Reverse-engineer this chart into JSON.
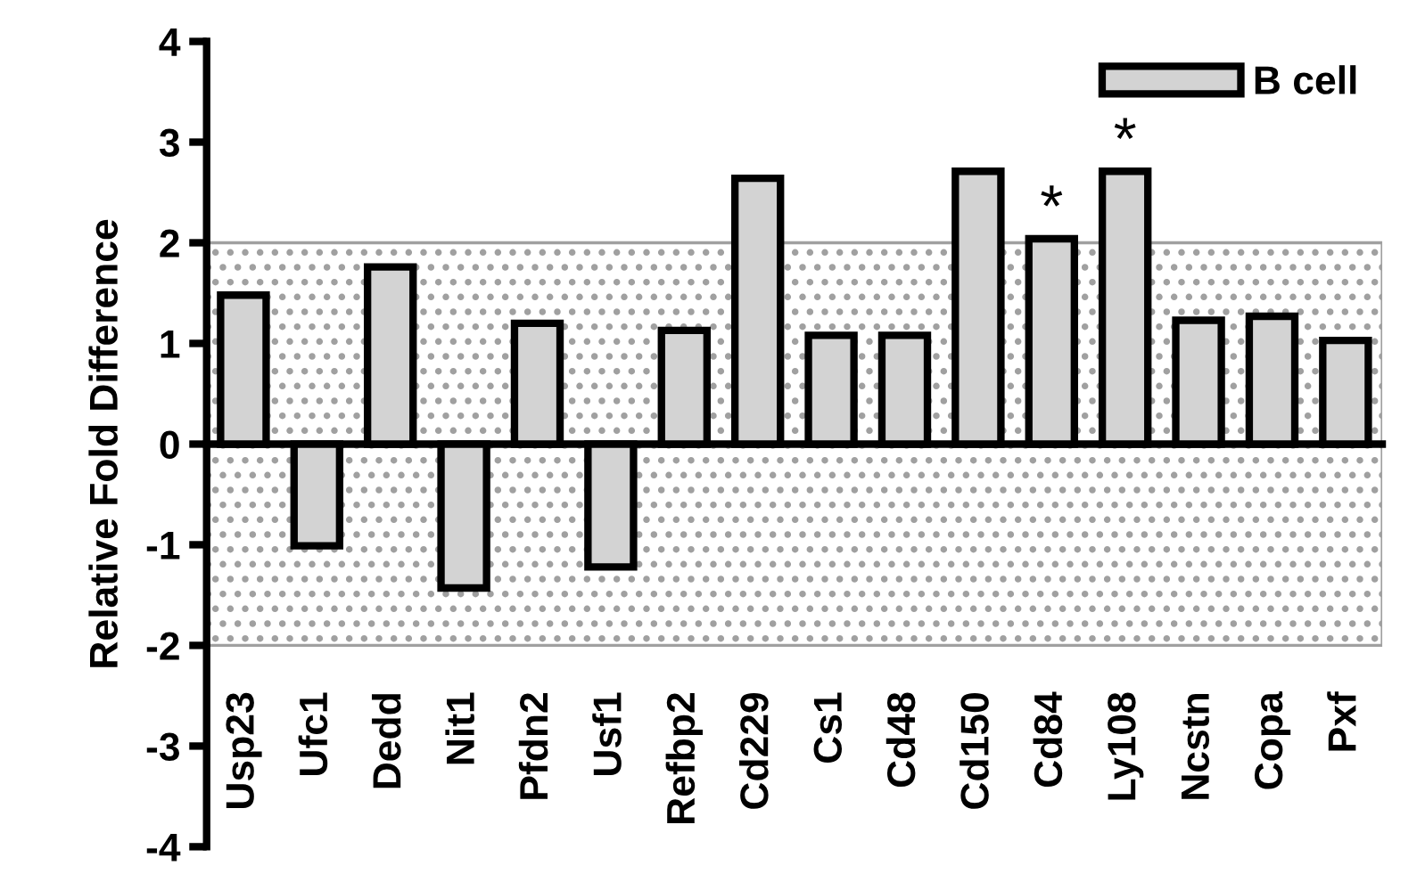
{
  "chart_data": {
    "type": "bar",
    "ylabel": "Relative Fold Difference",
    "categories": [
      "Usp23",
      "Ufc1",
      "Dedd",
      "Nit1",
      "Pfdn2",
      "Usf1",
      "Refbp2",
      "Cd229",
      "Cs1",
      "Cd48",
      "Cd150",
      "Cd84",
      "Ly108",
      "Ncstn",
      "Copa",
      "Pxf"
    ],
    "series": [
      {
        "name": "B cell",
        "color": "#d3d3d3",
        "values": [
          1.48,
          -1.01,
          1.76,
          -1.43,
          1.2,
          -1.22,
          1.13,
          2.64,
          1.08,
          1.08,
          2.71,
          2.04,
          2.71,
          1.23,
          1.27,
          1.03
        ]
      }
    ],
    "ylim": [
      -4,
      4
    ],
    "yticks": [
      -4,
      -3,
      -2,
      -1,
      0,
      1,
      2,
      3,
      4
    ],
    "bands": [
      {
        "axis": "y",
        "from": -2,
        "to": 2,
        "color": "#a0a0a0"
      }
    ],
    "annotations": [
      {
        "text": "*",
        "x": "Cd84",
        "y": 2.04
      },
      {
        "text": "*",
        "x": "Ly108",
        "y": 2.71
      }
    ],
    "legend": "top right"
  }
}
